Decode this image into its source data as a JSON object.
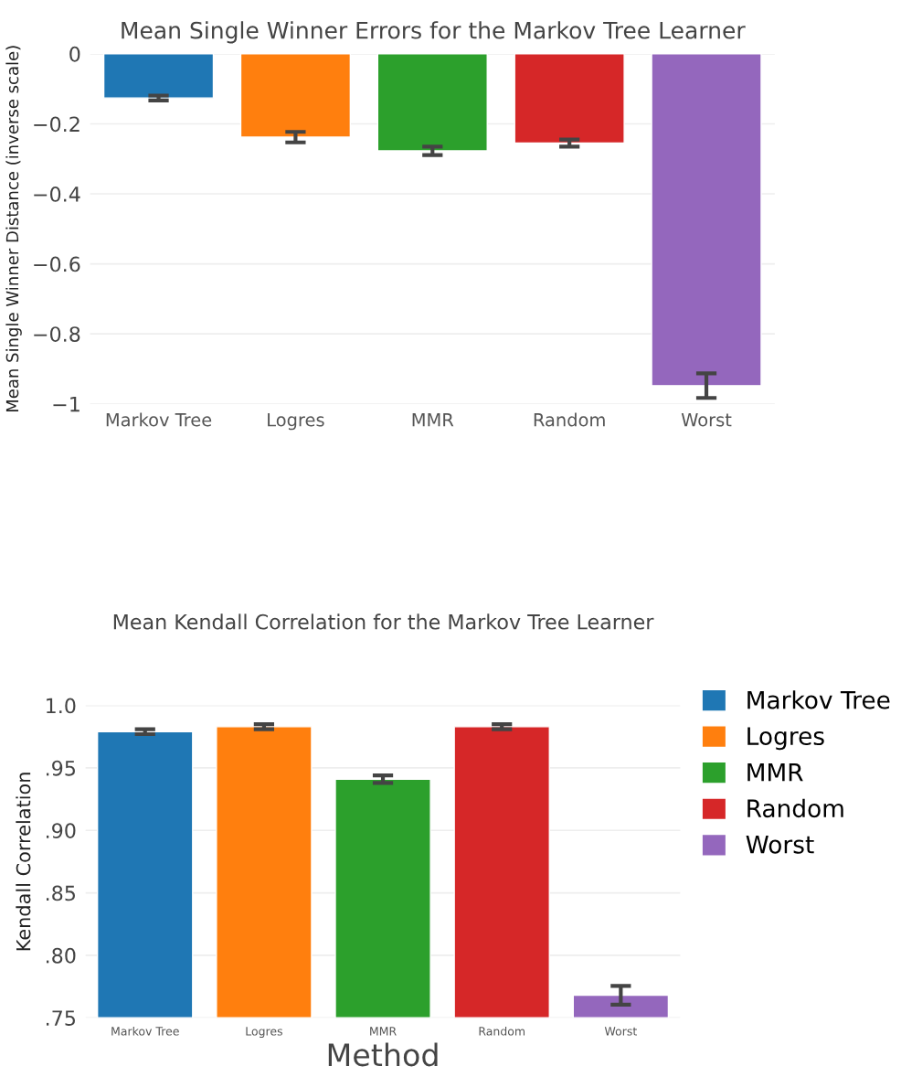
{
  "chart_data": [
    {
      "type": "bar",
      "title": "Mean Single Winner Errors for the Markov Tree Learner",
      "ylabel": "Mean Single Winner Distance (inverse scale)",
      "categories": [
        "Markov Tree",
        "Logres",
        "MMR",
        "Random",
        "Worst"
      ],
      "values": [
        -0.126,
        -0.238,
        -0.277,
        -0.255,
        -0.948
      ],
      "errors": [
        0.007,
        0.015,
        0.012,
        0.01,
        0.035
      ],
      "colors": [
        "#1f77b4",
        "#ff7f0e",
        "#2ca02c",
        "#d62728",
        "#9467bd"
      ],
      "ylim": [
        -1,
        0
      ],
      "yticks": [
        0,
        {
          "value": -0.2,
          "label": "−0.2"
        },
        {
          "value": -0.4,
          "label": "−0.4"
        },
        {
          "value": -0.6,
          "label": "−0.6"
        },
        {
          "value": -0.8,
          "label": "−0.8"
        },
        {
          "value": -1,
          "label": "−1"
        }
      ],
      "grid": "y",
      "legend": false
    },
    {
      "type": "bar",
      "title": "Mean Kendall Correlation for the Markov Tree Learner",
      "xlabel": "Method",
      "ylabel": "Kendall Correlation",
      "categories": [
        "Markov Tree",
        "Logres",
        "MMR",
        "Random",
        "Worst"
      ],
      "series": [
        {
          "name": "Markov Tree",
          "color": "#1f77b4",
          "values": [
            0.979,
            null,
            null,
            null,
            null
          ],
          "errors": [
            0.002,
            null,
            null,
            null,
            null
          ]
        },
        {
          "name": "Logres",
          "color": "#ff7f0e",
          "values": [
            null,
            0.983,
            null,
            null,
            null
          ],
          "errors": [
            null,
            0.002,
            null,
            null,
            null
          ]
        },
        {
          "name": "MMR",
          "color": "#2ca02c",
          "values": [
            null,
            null,
            0.941,
            null,
            null
          ],
          "errors": [
            null,
            null,
            0.003,
            null,
            null
          ]
        },
        {
          "name": "Random",
          "color": "#d62728",
          "values": [
            null,
            null,
            null,
            0.983,
            null
          ],
          "errors": [
            null,
            null,
            null,
            0.002,
            null
          ]
        },
        {
          "name": "Worst",
          "color": "#9467bd",
          "values": [
            null,
            null,
            null,
            null,
            0.768
          ],
          "errors": [
            null,
            null,
            null,
            null,
            0.0075
          ]
        }
      ],
      "ylim": [
        0.75,
        1.0
      ],
      "yticks": [
        {
          "value": 0.75,
          "label": ".75"
        },
        {
          "value": 0.8,
          "label": ".80"
        },
        {
          "value": 0.85,
          "label": ".85"
        },
        {
          "value": 0.9,
          "label": ".90"
        },
        {
          "value": 0.95,
          "label": ".95"
        },
        {
          "value": 1.0,
          "label": "1.0"
        }
      ],
      "grid": "y",
      "legend": "top right"
    }
  ]
}
